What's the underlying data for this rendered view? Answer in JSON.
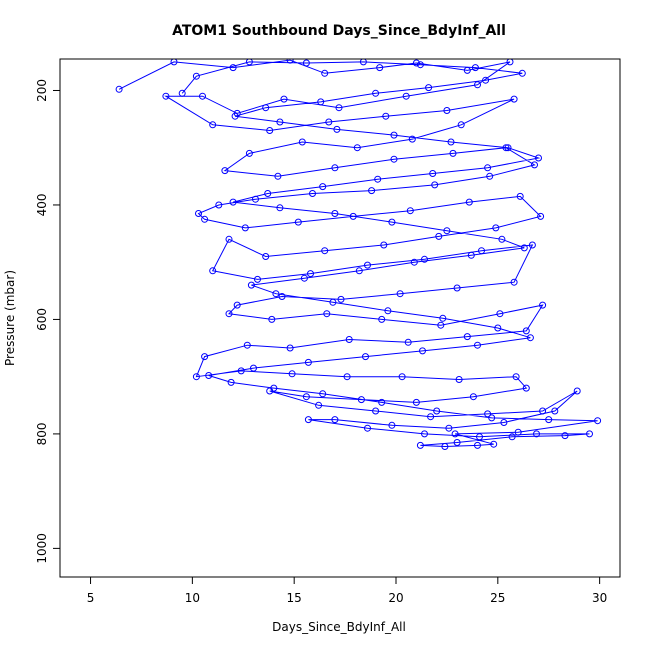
{
  "chart_data": {
    "type": "line",
    "title": "ATOM1 Southbound Days_Since_BdyInf_All",
    "xlabel": "Days_Since_BdyInf_All",
    "ylabel": "Pressure (mbar)",
    "xlim": [
      3.5,
      31
    ],
    "ylim": [
      1050,
      145
    ],
    "y_inverted": true,
    "xticks": [
      5,
      10,
      15,
      20,
      25,
      30
    ],
    "yticks": [
      200,
      400,
      600,
      800,
      1000
    ],
    "grid": false,
    "series_color": "#0000ff",
    "series": [
      {
        "marker": "open-circle",
        "points": [
          [
            6.4,
            198
          ],
          [
            9.1,
            150
          ],
          [
            12.0,
            160
          ],
          [
            14.8,
            147
          ],
          [
            16.5,
            170
          ],
          [
            19.2,
            160
          ],
          [
            21.0,
            152
          ],
          [
            23.5,
            165
          ],
          [
            25.6,
            150
          ],
          [
            24.0,
            190
          ],
          [
            20.5,
            210
          ],
          [
            17.2,
            230
          ],
          [
            14.5,
            215
          ],
          [
            12.2,
            240
          ],
          [
            10.5,
            210
          ],
          [
            8.7,
            210
          ],
          [
            11.0,
            260
          ],
          [
            13.8,
            270
          ],
          [
            16.7,
            255
          ],
          [
            19.5,
            245
          ],
          [
            22.5,
            235
          ],
          [
            25.8,
            215
          ],
          [
            23.2,
            260
          ],
          [
            20.8,
            285
          ],
          [
            18.1,
            300
          ],
          [
            15.4,
            290
          ],
          [
            12.8,
            310
          ],
          [
            11.6,
            340
          ],
          [
            14.2,
            350
          ],
          [
            17.0,
            335
          ],
          [
            19.9,
            320
          ],
          [
            22.8,
            310
          ],
          [
            25.4,
            300
          ],
          [
            26.8,
            330
          ],
          [
            24.6,
            350
          ],
          [
            21.9,
            365
          ],
          [
            18.8,
            375
          ],
          [
            15.9,
            380
          ],
          [
            13.1,
            390
          ],
          [
            11.3,
            400
          ],
          [
            10.3,
            415
          ],
          [
            10.6,
            425
          ],
          [
            12.6,
            440
          ],
          [
            15.2,
            430
          ],
          [
            17.9,
            420
          ],
          [
            20.7,
            410
          ],
          [
            23.6,
            395
          ],
          [
            26.1,
            385
          ],
          [
            27.1,
            420
          ],
          [
            24.9,
            440
          ],
          [
            22.1,
            455
          ],
          [
            19.4,
            470
          ],
          [
            16.5,
            480
          ],
          [
            13.6,
            490
          ],
          [
            11.8,
            460
          ],
          [
            11.0,
            515
          ],
          [
            13.2,
            530
          ],
          [
            15.8,
            520
          ],
          [
            18.6,
            505
          ],
          [
            21.4,
            495
          ],
          [
            24.2,
            480
          ],
          [
            26.7,
            470
          ],
          [
            25.8,
            535
          ],
          [
            23.0,
            545
          ],
          [
            20.2,
            555
          ],
          [
            17.3,
            565
          ],
          [
            14.4,
            560
          ],
          [
            12.2,
            575
          ],
          [
            11.8,
            590
          ],
          [
            13.9,
            600
          ],
          [
            16.6,
            590
          ],
          [
            19.3,
            600
          ],
          [
            22.2,
            610
          ],
          [
            25.1,
            590
          ],
          [
            27.2,
            575
          ],
          [
            26.4,
            620
          ],
          [
            23.5,
            630
          ],
          [
            20.6,
            640
          ],
          [
            17.7,
            635
          ],
          [
            14.8,
            650
          ],
          [
            12.7,
            645
          ],
          [
            10.6,
            665
          ],
          [
            10.2,
            700
          ],
          [
            12.4,
            690
          ],
          [
            14.9,
            695
          ],
          [
            17.6,
            700
          ],
          [
            20.3,
            700
          ],
          [
            23.1,
            705
          ],
          [
            25.9,
            700
          ],
          [
            26.4,
            720
          ],
          [
            23.8,
            735
          ],
          [
            21.0,
            745
          ],
          [
            18.3,
            740
          ],
          [
            15.6,
            735
          ],
          [
            13.8,
            725
          ],
          [
            16.2,
            750
          ],
          [
            19.0,
            760
          ],
          [
            21.7,
            770
          ],
          [
            24.5,
            765
          ],
          [
            27.2,
            760
          ],
          [
            28.9,
            725
          ],
          [
            27.8,
            760
          ],
          [
            25.3,
            780
          ],
          [
            22.6,
            790
          ],
          [
            19.8,
            785
          ],
          [
            17.0,
            775
          ],
          [
            15.7,
            775
          ],
          [
            18.6,
            790
          ],
          [
            21.4,
            800
          ],
          [
            24.1,
            805
          ],
          [
            26.9,
            800
          ],
          [
            29.5,
            800
          ],
          [
            28.3,
            803
          ],
          [
            25.7,
            805
          ],
          [
            23.0,
            815
          ],
          [
            21.2,
            820
          ],
          [
            22.4,
            822
          ],
          [
            24.0,
            820
          ],
          [
            24.8,
            818
          ],
          [
            22.9,
            800
          ],
          [
            26.0,
            797
          ],
          [
            29.9,
            777
          ],
          [
            27.5,
            775
          ],
          [
            24.7,
            772
          ],
          [
            22.0,
            760
          ],
          [
            19.3,
            745
          ],
          [
            16.4,
            730
          ],
          [
            14.0,
            720
          ],
          [
            11.9,
            710
          ],
          [
            10.8,
            698
          ],
          [
            13.0,
            685
          ],
          [
            15.7,
            675
          ],
          [
            18.5,
            665
          ],
          [
            21.3,
            655
          ],
          [
            24.0,
            645
          ],
          [
            26.6,
            632
          ],
          [
            25.0,
            615
          ],
          [
            22.3,
            598
          ],
          [
            19.6,
            585
          ],
          [
            16.9,
            570
          ],
          [
            14.1,
            555
          ],
          [
            12.9,
            540
          ],
          [
            15.5,
            528
          ],
          [
            18.2,
            515
          ],
          [
            20.9,
            500
          ],
          [
            23.7,
            488
          ],
          [
            26.3,
            475
          ],
          [
            25.2,
            460
          ],
          [
            22.5,
            445
          ],
          [
            19.8,
            430
          ],
          [
            17.0,
            415
          ],
          [
            14.3,
            405
          ],
          [
            12.0,
            395
          ],
          [
            13.7,
            380
          ],
          [
            16.4,
            368
          ],
          [
            19.1,
            355
          ],
          [
            21.8,
            345
          ],
          [
            24.5,
            335
          ],
          [
            27.0,
            318
          ],
          [
            25.5,
            300
          ],
          [
            22.7,
            290
          ],
          [
            19.9,
            278
          ],
          [
            17.1,
            268
          ],
          [
            14.3,
            255
          ],
          [
            12.1,
            245
          ],
          [
            13.6,
            230
          ],
          [
            16.3,
            220
          ],
          [
            19.0,
            205
          ],
          [
            21.6,
            195
          ],
          [
            24.4,
            182
          ],
          [
            26.2,
            170
          ],
          [
            23.9,
            160
          ],
          [
            21.2,
            155
          ],
          [
            18.4,
            150
          ],
          [
            15.6,
            152
          ],
          [
            12.8,
            150
          ],
          [
            10.2,
            175
          ],
          [
            9.5,
            205
          ]
        ]
      }
    ]
  }
}
